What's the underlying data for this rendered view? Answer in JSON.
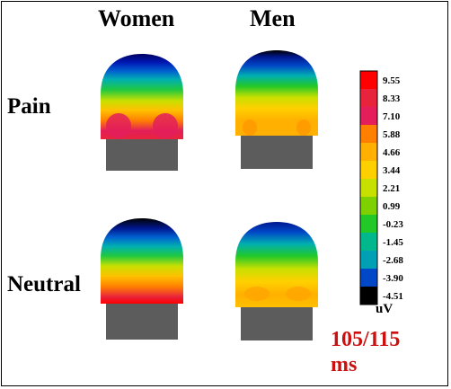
{
  "chart_data": {
    "type": "heatmap",
    "columns": [
      "Women",
      "Men"
    ],
    "rows": [
      "Pain",
      "Neutral"
    ],
    "colorbar": {
      "ticks": [
        "9.55",
        "8.33",
        "7.10",
        "5.88",
        "4.66",
        "3.44",
        "2.21",
        "0.99",
        "-0.23",
        "-1.45",
        "-2.68",
        "-3.90",
        "-4.51"
      ],
      "colors": [
        "#ff0000",
        "#e8243c",
        "#e31e5a",
        "#ff8000",
        "#ffb000",
        "#ffd000",
        "#c8e000",
        "#7fd000",
        "#22c828",
        "#00b88c",
        "#00a0b4",
        "#0048c8",
        "#000000"
      ],
      "unit": "uV",
      "range": [
        -4.51,
        9.55
      ]
    },
    "timing": [
      "105/115",
      "ms"
    ]
  }
}
